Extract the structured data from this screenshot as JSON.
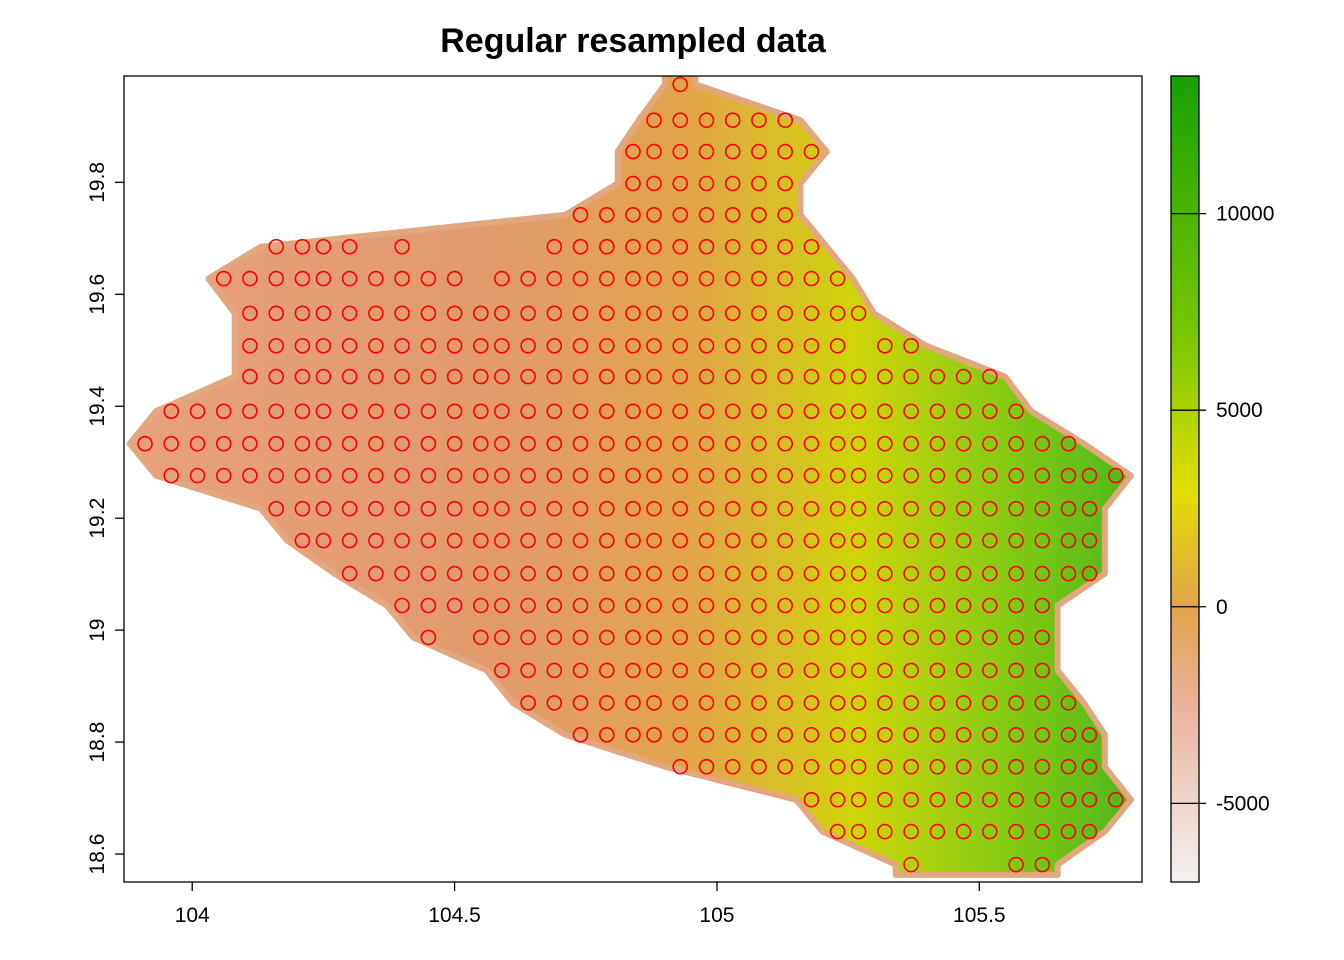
{
  "chart_data": {
    "type": "heatmap",
    "title": "Regular resampled data",
    "xlabel": "",
    "ylabel": "",
    "xlim": [
      103.87,
      105.81
    ],
    "ylim": [
      18.55,
      19.99
    ],
    "x_ticks": [
      104,
      104.5,
      105,
      105.5
    ],
    "x_tick_labels": [
      "104",
      "104.5",
      "105",
      "105.5"
    ],
    "y_ticks": [
      18.6,
      18.8,
      19,
      19.2,
      19.4,
      19.6,
      19.8
    ],
    "y_tick_labels": [
      "18.6",
      "18.8",
      "19",
      "19.2",
      "19.4",
      "19.6",
      "19.8"
    ],
    "grid": false,
    "raster": {
      "description_region": "province outline raster",
      "color_scale": {
        "range": [
          -7000,
          13500
        ],
        "ticks": [
          -5000,
          0,
          5000,
          10000
        ],
        "tick_labels": [
          "-5000",
          "0",
          "5000",
          "10000"
        ],
        "stops": [
          {
            "value": -7000,
            "color": "#f2f2f2"
          },
          {
            "value": -2500,
            "color": "#eab29b"
          },
          {
            "value": 0,
            "color": "#e3a34a"
          },
          {
            "value": 3000,
            "color": "#e1de00"
          },
          {
            "value": 7000,
            "color": "#76c700"
          },
          {
            "value": 13500,
            "color": "#17a000"
          }
        ]
      }
    },
    "points": {
      "marker": "open-circle",
      "color": "#ff0000",
      "x_spacing": 0.0485,
      "y_spacing": 0.0333,
      "rows": [
        {
          "y": 19.975,
          "x": [
            104.93
          ]
        },
        {
          "y": 19.911,
          "x": [
            104.88,
            104.93,
            104.98,
            105.03,
            105.08,
            105.13
          ]
        },
        {
          "y": 19.855,
          "x": [
            104.84,
            104.88,
            104.93,
            104.98,
            105.03,
            105.08,
            105.13,
            105.18
          ]
        },
        {
          "y": 19.798,
          "x": [
            104.84,
            104.88,
            104.93,
            104.98,
            105.03,
            105.08,
            105.13
          ]
        },
        {
          "y": 19.742,
          "x": [
            104.74,
            104.79,
            104.84,
            104.88,
            104.93,
            104.98,
            105.03,
            105.08,
            105.13
          ]
        },
        {
          "y": 19.685,
          "x": [
            104.16,
            104.21,
            104.25,
            104.3,
            104.4,
            104.69,
            104.74,
            104.79,
            104.84,
            104.88,
            104.93,
            104.98,
            105.03,
            105.08,
            105.13,
            105.18
          ]
        },
        {
          "y": 19.628,
          "x": [
            104.06,
            104.11,
            104.16,
            104.21,
            104.25,
            104.3,
            104.35,
            104.4,
            104.45,
            104.5,
            104.59,
            104.64,
            104.69,
            104.74,
            104.79,
            104.84,
            104.88,
            104.93,
            104.98,
            105.03,
            105.08,
            105.13,
            105.18,
            105.23
          ]
        },
        {
          "y": 19.566,
          "x": [
            104.11,
            104.16,
            104.21,
            104.25,
            104.3,
            104.35,
            104.4,
            104.45,
            104.5,
            104.55,
            104.59,
            104.64,
            104.69,
            104.74,
            104.79,
            104.84,
            104.88,
            104.93,
            104.98,
            105.03,
            105.08,
            105.13,
            105.18,
            105.23,
            105.27
          ]
        },
        {
          "y": 19.508,
          "x": [
            104.11,
            104.16,
            104.21,
            104.25,
            104.3,
            104.35,
            104.4,
            104.45,
            104.5,
            104.55,
            104.59,
            104.64,
            104.69,
            104.74,
            104.79,
            104.84,
            104.88,
            104.93,
            104.98,
            105.03,
            105.08,
            105.13,
            105.18,
            105.23,
            105.32,
            105.37
          ]
        },
        {
          "y": 19.453,
          "x": [
            104.11,
            104.16,
            104.21,
            104.25,
            104.3,
            104.35,
            104.4,
            104.45,
            104.5,
            104.55,
            104.59,
            104.64,
            104.69,
            104.74,
            104.79,
            104.84,
            104.88,
            104.93,
            104.98,
            105.03,
            105.08,
            105.13,
            105.18,
            105.23,
            105.27,
            105.32,
            105.37,
            105.42,
            105.47,
            105.52
          ]
        },
        {
          "y": 19.391,
          "x": [
            103.96,
            104.01,
            104.06,
            104.11,
            104.16,
            104.21,
            104.25,
            104.3,
            104.35,
            104.4,
            104.45,
            104.5,
            104.55,
            104.59,
            104.64,
            104.69,
            104.74,
            104.79,
            104.84,
            104.88,
            104.93,
            104.98,
            105.03,
            105.08,
            105.13,
            105.18,
            105.23,
            105.27,
            105.32,
            105.37,
            105.42,
            105.47,
            105.52,
            105.57
          ]
        },
        {
          "y": 19.333,
          "x": [
            103.91,
            103.96,
            104.01,
            104.06,
            104.11,
            104.16,
            104.21,
            104.25,
            104.3,
            104.35,
            104.4,
            104.45,
            104.5,
            104.55,
            104.59,
            104.64,
            104.69,
            104.74,
            104.79,
            104.84,
            104.88,
            104.93,
            104.98,
            105.03,
            105.08,
            105.13,
            105.18,
            105.23,
            105.27,
            105.32,
            105.37,
            105.42,
            105.47,
            105.52,
            105.57,
            105.62,
            105.67
          ]
        },
        {
          "y": 19.276,
          "x": [
            103.96,
            104.01,
            104.06,
            104.11,
            104.16,
            104.21,
            104.25,
            104.3,
            104.35,
            104.4,
            104.45,
            104.5,
            104.55,
            104.59,
            104.64,
            104.69,
            104.74,
            104.79,
            104.84,
            104.88,
            104.93,
            104.98,
            105.03,
            105.08,
            105.13,
            105.18,
            105.23,
            105.27,
            105.32,
            105.37,
            105.42,
            105.47,
            105.52,
            105.57,
            105.62,
            105.67,
            105.71,
            105.76
          ]
        },
        {
          "y": 19.217,
          "x": [
            104.16,
            104.21,
            104.25,
            104.3,
            104.35,
            104.4,
            104.45,
            104.5,
            104.55,
            104.59,
            104.64,
            104.69,
            104.74,
            104.79,
            104.84,
            104.88,
            104.93,
            104.98,
            105.03,
            105.08,
            105.13,
            105.18,
            105.23,
            105.27,
            105.32,
            105.37,
            105.42,
            105.47,
            105.52,
            105.57,
            105.62,
            105.67,
            105.71
          ]
        },
        {
          "y": 19.16,
          "x": [
            104.21,
            104.25,
            104.3,
            104.35,
            104.4,
            104.45,
            104.5,
            104.55,
            104.59,
            104.64,
            104.69,
            104.74,
            104.79,
            104.84,
            104.88,
            104.93,
            104.98,
            105.03,
            105.08,
            105.13,
            105.18,
            105.23,
            105.27,
            105.32,
            105.37,
            105.42,
            105.47,
            105.52,
            105.57,
            105.62,
            105.67,
            105.71
          ]
        },
        {
          "y": 19.101,
          "x": [
            104.3,
            104.35,
            104.4,
            104.45,
            104.5,
            104.55,
            104.59,
            104.64,
            104.69,
            104.74,
            104.79,
            104.84,
            104.88,
            104.93,
            104.98,
            105.03,
            105.08,
            105.13,
            105.18,
            105.23,
            105.27,
            105.32,
            105.37,
            105.42,
            105.47,
            105.52,
            105.57,
            105.62,
            105.67,
            105.71
          ]
        },
        {
          "y": 19.044,
          "x": [
            104.4,
            104.45,
            104.5,
            104.55,
            104.59,
            104.64,
            104.69,
            104.74,
            104.79,
            104.84,
            104.88,
            104.93,
            104.98,
            105.03,
            105.08,
            105.13,
            105.18,
            105.23,
            105.27,
            105.32,
            105.37,
            105.42,
            105.47,
            105.52,
            105.57,
            105.62
          ]
        },
        {
          "y": 18.987,
          "x": [
            104.45,
            104.55,
            104.59,
            104.64,
            104.69,
            104.74,
            104.79,
            104.84,
            104.88,
            104.93,
            104.98,
            105.03,
            105.08,
            105.13,
            105.18,
            105.23,
            105.27,
            105.32,
            105.37,
            105.42,
            105.47,
            105.52,
            105.57,
            105.62
          ]
        },
        {
          "y": 18.928,
          "x": [
            104.59,
            104.64,
            104.69,
            104.74,
            104.79,
            104.84,
            104.88,
            104.93,
            104.98,
            105.03,
            105.08,
            105.13,
            105.18,
            105.23,
            105.27,
            105.32,
            105.37,
            105.42,
            105.47,
            105.52,
            105.57,
            105.62
          ]
        },
        {
          "y": 18.87,
          "x": [
            104.64,
            104.69,
            104.74,
            104.79,
            104.84,
            104.88,
            104.93,
            104.98,
            105.03,
            105.08,
            105.13,
            105.18,
            105.23,
            105.27,
            105.32,
            105.37,
            105.42,
            105.47,
            105.52,
            105.57,
            105.62,
            105.67
          ]
        },
        {
          "y": 18.813,
          "x": [
            104.74,
            104.79,
            104.84,
            104.88,
            104.93,
            104.98,
            105.03,
            105.08,
            105.13,
            105.18,
            105.23,
            105.27,
            105.32,
            105.37,
            105.42,
            105.47,
            105.52,
            105.57,
            105.62,
            105.67,
            105.71
          ]
        },
        {
          "y": 18.756,
          "x": [
            104.93,
            104.98,
            105.03,
            105.08,
            105.13,
            105.18,
            105.23,
            105.27,
            105.32,
            105.37,
            105.42,
            105.47,
            105.52,
            105.57,
            105.62,
            105.67,
            105.71
          ]
        },
        {
          "y": 18.697,
          "x": [
            105.18,
            105.23,
            105.27,
            105.32,
            105.37,
            105.42,
            105.47,
            105.52,
            105.57,
            105.62,
            105.67,
            105.71,
            105.76
          ]
        },
        {
          "y": 18.64,
          "x": [
            105.23,
            105.27,
            105.32,
            105.37,
            105.42,
            105.47,
            105.52,
            105.57,
            105.62,
            105.67,
            105.71
          ]
        },
        {
          "y": 18.581,
          "x": [
            105.37,
            105.57,
            105.62
          ]
        }
      ]
    }
  }
}
